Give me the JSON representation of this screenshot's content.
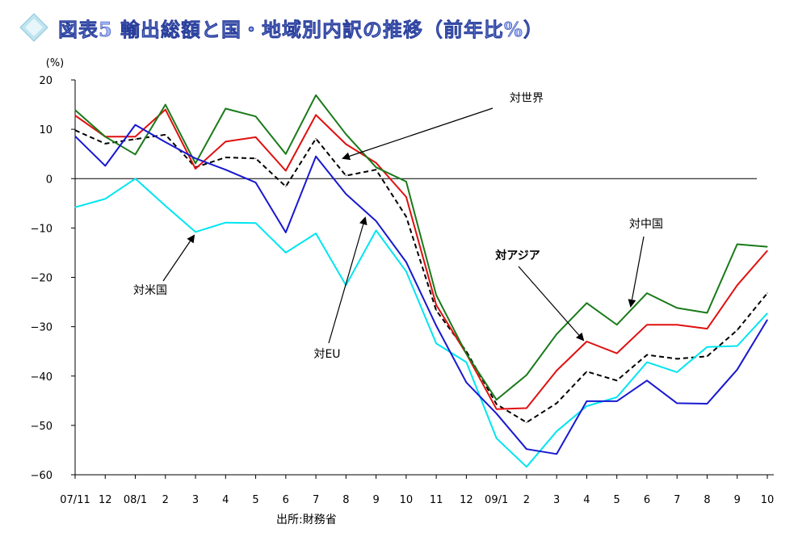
{
  "title": "図表5  輸出総額と国・地域別内訳の推移（前年比%）",
  "source": "出所:財務省",
  "colors": {
    "world": "#000000",
    "asia": "#e01010",
    "china": "#1a7a1a",
    "us": "#00e5f0",
    "eu": "#1818d0",
    "title_fill": "#9fb6ff",
    "title_stroke": "#2a3f9c",
    "diamond": "#bfe4f0"
  },
  "chart_data": {
    "type": "line",
    "unit_label": "(%)",
    "ylim": [
      -60,
      20
    ],
    "yticks": [
      20,
      10,
      0,
      -10,
      -20,
      -30,
      -40,
      -50,
      -60
    ],
    "categories": [
      "07/11",
      "12",
      "08/1",
      "2",
      "3",
      "4",
      "5",
      "6",
      "7",
      "8",
      "9",
      "10",
      "11",
      "12",
      "09/1",
      "2",
      "3",
      "4",
      "5",
      "6",
      "7",
      "8",
      "9",
      "10"
    ],
    "grid": false,
    "legend": "inline annotations with arrows",
    "series": [
      {
        "name": "対世界",
        "color": "#000000",
        "dashed": true,
        "values": [
          9.8,
          7.1,
          8.0,
          8.9,
          2.3,
          4.3,
          4.1,
          -1.6,
          8.1,
          0.6,
          1.8,
          -7.7,
          -26.7,
          -35.0,
          -45.7,
          -49.4,
          -45.5,
          -39.1,
          -40.9,
          -35.7,
          -36.5,
          -36.0,
          -30.7,
          -23.2
        ]
      },
      {
        "name": "対アジア",
        "color": "#e01010",
        "dashed": false,
        "values": [
          12.8,
          8.5,
          8.5,
          14.0,
          2.0,
          7.5,
          8.4,
          1.6,
          12.9,
          7.0,
          3.2,
          -3.7,
          -25.6,
          -35.5,
          -46.7,
          -46.5,
          -38.9,
          -33.0,
          -35.4,
          -29.6,
          -29.6,
          -30.4,
          -21.6,
          -14.6
        ]
      },
      {
        "name": "対中国",
        "color": "#1a7a1a",
        "dashed": false,
        "values": [
          13.9,
          8.5,
          4.9,
          15.0,
          3.1,
          14.2,
          12.6,
          5.0,
          16.9,
          9.0,
          2.3,
          -0.6,
          -23.6,
          -35.5,
          -44.8,
          -39.8,
          -31.5,
          -25.2,
          -29.6,
          -23.2,
          -26.2,
          -27.2,
          -13.3,
          -13.8
        ]
      },
      {
        "name": "対米国",
        "color": "#00e5f0",
        "dashed": false,
        "values": [
          -5.8,
          -4.1,
          0.0,
          -5.5,
          -10.8,
          -8.9,
          -9.0,
          -15.0,
          -11.1,
          -21.6,
          -10.5,
          -18.8,
          -33.4,
          -37.2,
          -52.6,
          -58.4,
          -51.2,
          -46.1,
          -44.3,
          -37.2,
          -39.2,
          -34.1,
          -33.9,
          -27.3
        ]
      },
      {
        "name": "対EU",
        "color": "#1818d0",
        "dashed": false,
        "values": [
          8.6,
          2.6,
          10.9,
          7.4,
          4.1,
          1.8,
          -0.8,
          -10.9,
          4.5,
          -3.1,
          -8.6,
          -16.9,
          -29.8,
          -41.3,
          -47.6,
          -54.8,
          -55.8,
          -45.1,
          -45.1,
          -40.9,
          -45.5,
          -45.6,
          -38.7,
          -28.6
        ]
      }
    ],
    "annotations": [
      {
        "text": "対世界",
        "bold": false,
        "label_x": 652,
        "label_y": 126,
        "from": [
          610,
          134
        ],
        "to": [
          425,
          196
        ]
      },
      {
        "text": "対中国",
        "bold": false,
        "label_x": 800,
        "label_y": 282,
        "from": [
          797,
          293
        ],
        "to": [
          781,
          379
        ]
      },
      {
        "text": "対アジア",
        "bold": true,
        "label_x": 641,
        "label_y": 321,
        "from": [
          642,
          330
        ],
        "to": [
          722,
          421
        ]
      },
      {
        "text": "対米国",
        "bold": false,
        "label_x": 186,
        "label_y": 364,
        "from": [
          202,
          348
        ],
        "to": [
          240,
          292
        ]
      },
      {
        "text": "対EU",
        "bold": false,
        "label_x": 405,
        "label_y": 443,
        "from": [
          407,
          425
        ],
        "to": [
          452,
          270
        ]
      }
    ]
  }
}
